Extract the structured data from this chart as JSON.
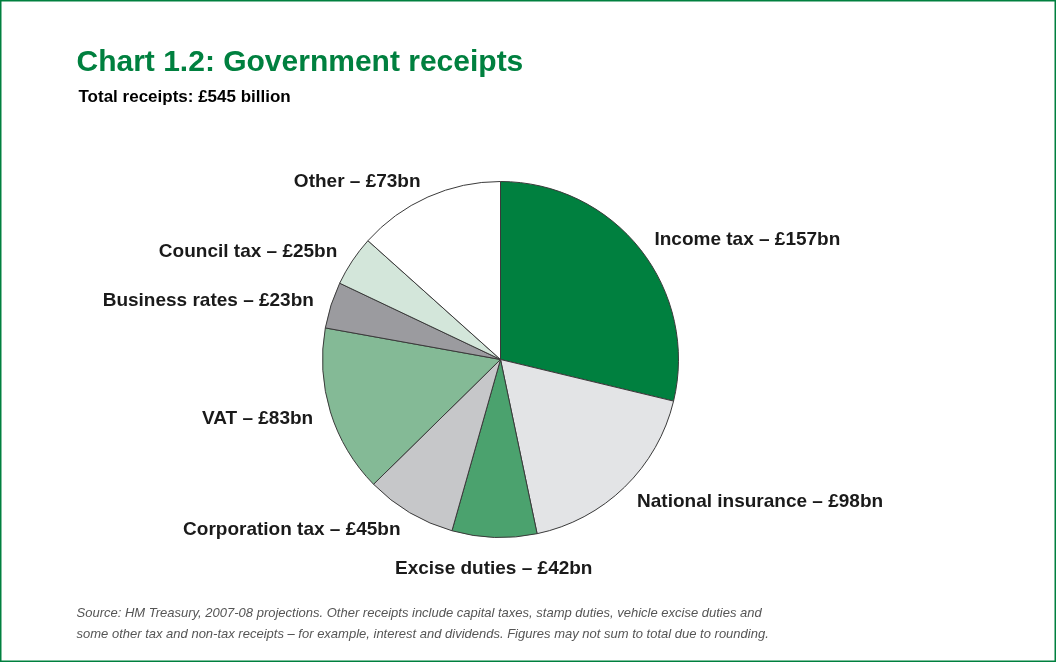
{
  "chart_data": {
    "type": "pie",
    "title": "Chart 1.2: Government receipts",
    "subtitle": "Total receipts: £545 billion",
    "categories": [
      "Income tax –",
      "National insurance –",
      "Excise duties –",
      "Corporation tax –",
      "VAT –",
      "Business rates –",
      "Council tax –",
      "Other –"
    ],
    "values": [
      157,
      98,
      42,
      45,
      83,
      23,
      25,
      73
    ],
    "value_labels": [
      "£157bn",
      "£98bn",
      "£42bn",
      "£45bn",
      "£83bn",
      "£23bn",
      "£25bn",
      "£73bn"
    ],
    "colors": [
      "#00803f",
      "#e3e4e6",
      "#4ba26e",
      "#c6c7c9",
      "#84ba96",
      "#9b9b9f",
      "#d3e6da",
      "#ffffff"
    ],
    "legend": false,
    "annotations": [
      "Source: HM Treasury, 2007-08 projections. Other receipts include capital taxes, stamp duties, vehicle excise duties and some other tax and non-tax receipts – for example, interest and dividends. Figures may not sum to total due to rounding."
    ]
  }
}
